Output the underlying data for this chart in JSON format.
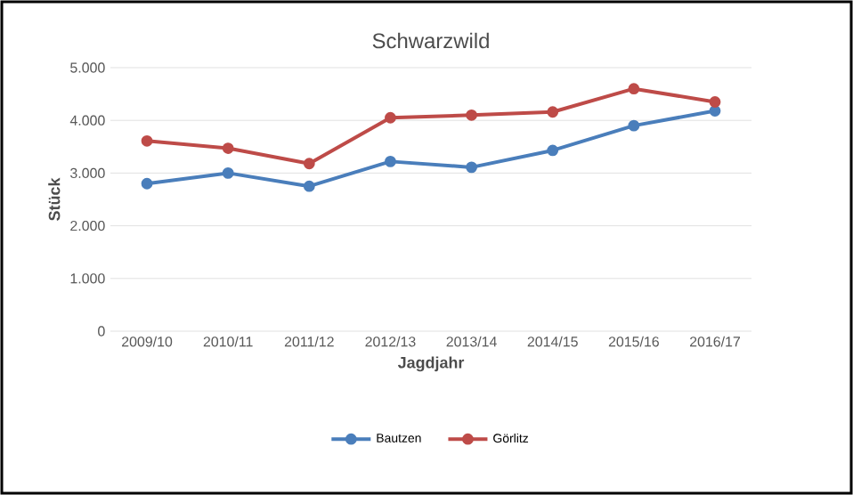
{
  "chart_data": {
    "type": "line",
    "title": "Schwarzwild",
    "xlabel": "Jagdjahr",
    "ylabel": "Stück",
    "categories": [
      "2009/10",
      "2010/11",
      "2011/12",
      "2012/13",
      "2013/14",
      "2014/15",
      "2015/16",
      "2016/17"
    ],
    "series": [
      {
        "name": "Bautzen",
        "color": "#4a7ebb",
        "values": [
          2800,
          3000,
          2750,
          3220,
          3110,
          3430,
          3900,
          4180
        ]
      },
      {
        "name": "Görlitz",
        "color": "#be4b48",
        "values": [
          3610,
          3470,
          3180,
          4050,
          4100,
          4160,
          4600,
          4350
        ]
      }
    ],
    "ylim": [
      0,
      5000
    ],
    "yticks": [
      {
        "value": 0,
        "label": "0"
      },
      {
        "value": 1000,
        "label": "1.000"
      },
      {
        "value": 2000,
        "label": "2.000"
      },
      {
        "value": 3000,
        "label": "3.000"
      },
      {
        "value": 4000,
        "label": "4.000"
      },
      {
        "value": 5000,
        "label": "5.000"
      }
    ],
    "grid": "y",
    "legend": "bottom",
    "marker": "circle"
  }
}
